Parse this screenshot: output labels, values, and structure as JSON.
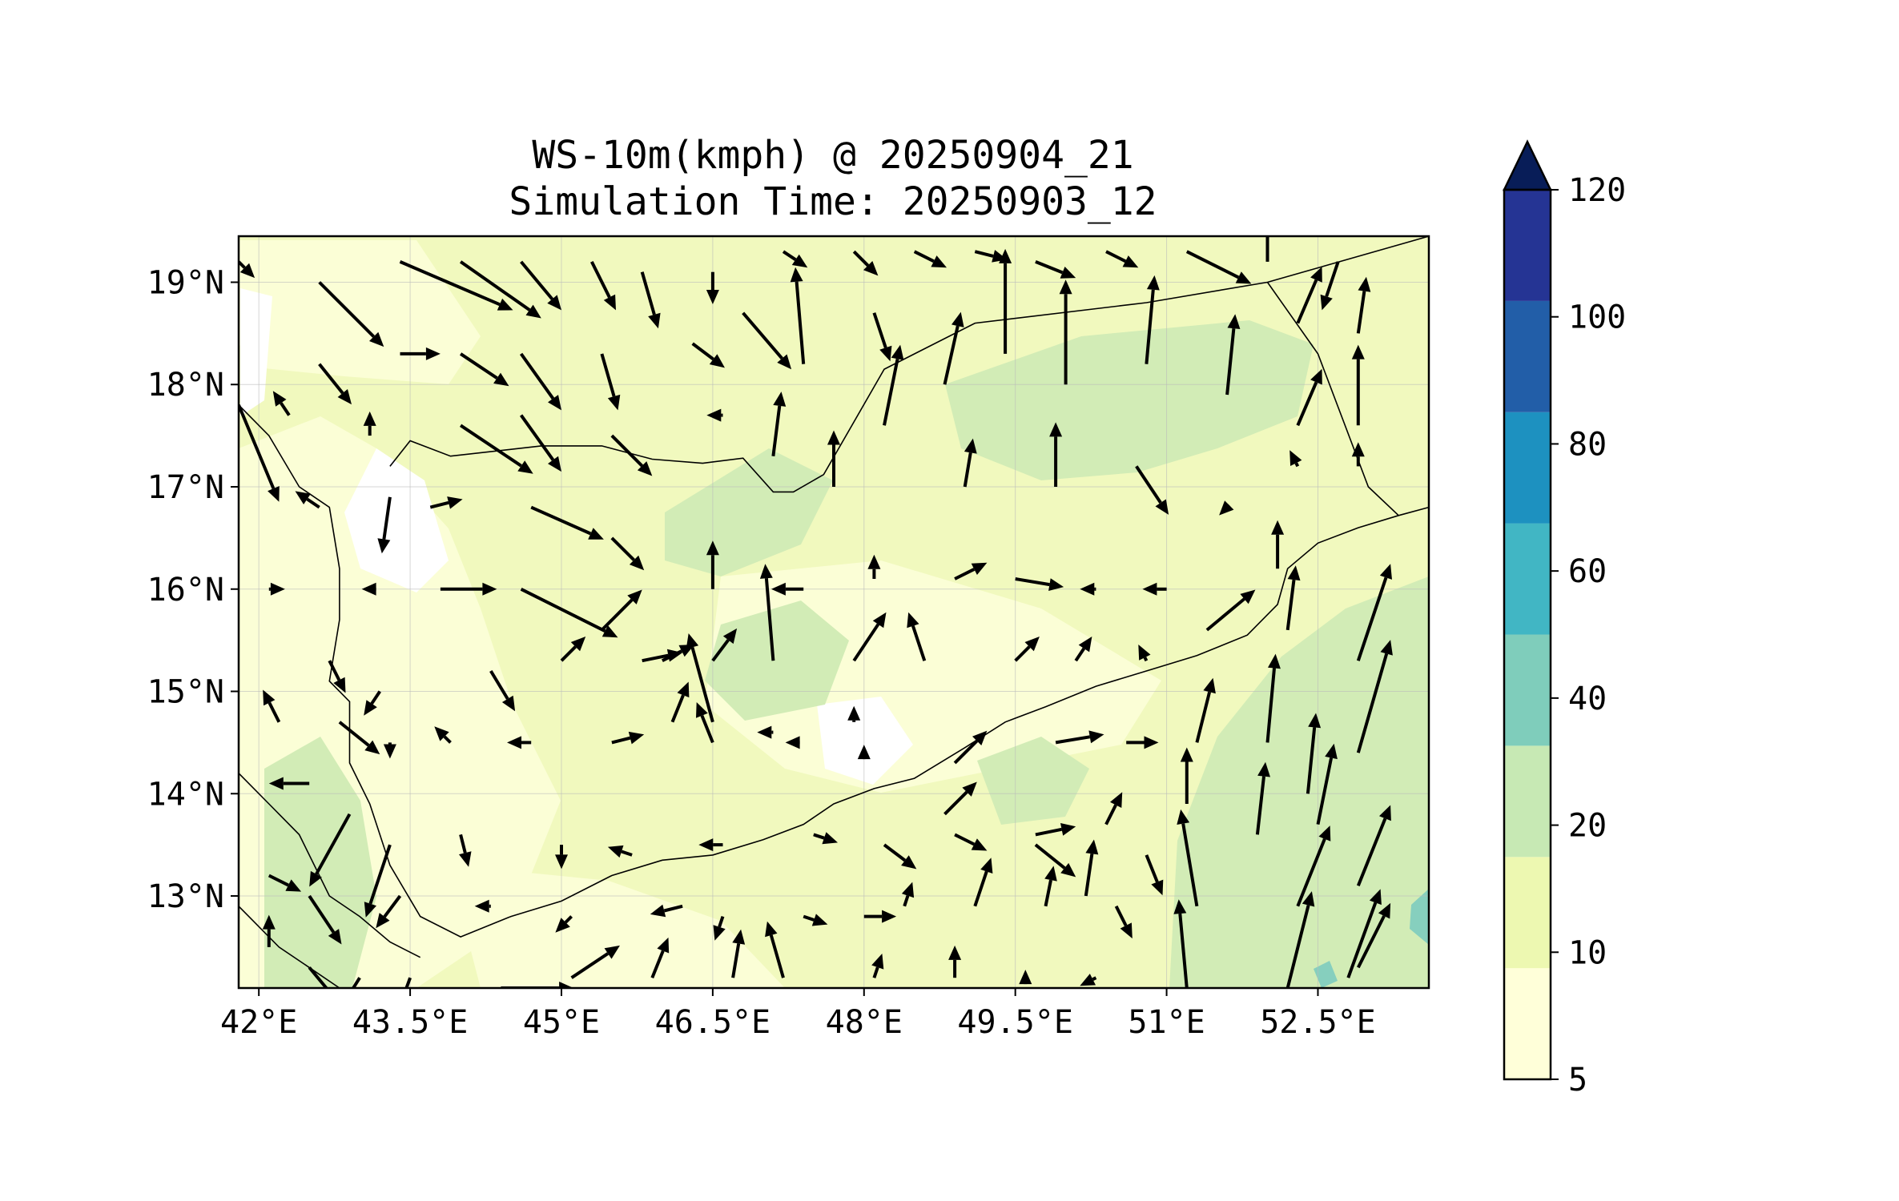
{
  "title": {
    "line1": "WS-10m(kmph) @ 20250904_21",
    "line2": "Simulation Time: 20250903_12"
  },
  "map": {
    "lon_range": [
      41.8,
      53.6
    ],
    "lat_range": [
      12.1,
      19.45
    ],
    "lon_ticks": [
      {
        "value": 42.0,
        "label": "42°E"
      },
      {
        "value": 43.5,
        "label": "43.5°E"
      },
      {
        "value": 45.0,
        "label": "45°E"
      },
      {
        "value": 46.5,
        "label": "46.5°E"
      },
      {
        "value": 48.0,
        "label": "48°E"
      },
      {
        "value": 49.5,
        "label": "49.5°E"
      },
      {
        "value": 51.0,
        "label": "51°E"
      },
      {
        "value": 52.5,
        "label": "52.5°E"
      }
    ],
    "lat_ticks": [
      {
        "value": 19,
        "label": "19°N"
      },
      {
        "value": 18,
        "label": "18°N"
      },
      {
        "value": 17,
        "label": "17°N"
      },
      {
        "value": 16,
        "label": "16°N"
      },
      {
        "value": 15,
        "label": "15°N"
      },
      {
        "value": 14,
        "label": "14°N"
      },
      {
        "value": 13,
        "label": "13°N"
      }
    ],
    "gridlines": true,
    "coastline": [
      [
        41.8,
        17.8
      ],
      [
        42.1,
        17.5
      ],
      [
        42.4,
        17.0
      ],
      [
        42.7,
        16.8
      ],
      [
        42.8,
        16.2
      ],
      [
        42.8,
        15.7
      ],
      [
        42.7,
        15.1
      ],
      [
        42.9,
        14.9
      ],
      [
        42.9,
        14.3
      ],
      [
        43.1,
        13.9
      ],
      [
        43.3,
        13.3
      ],
      [
        43.6,
        12.8
      ],
      [
        44.0,
        12.6
      ],
      [
        44.5,
        12.8
      ],
      [
        45.0,
        12.95
      ],
      [
        45.5,
        13.2
      ],
      [
        46.0,
        13.35
      ],
      [
        46.5,
        13.4
      ],
      [
        47.0,
        13.55
      ],
      [
        47.4,
        13.7
      ],
      [
        47.7,
        13.9
      ],
      [
        48.1,
        14.05
      ],
      [
        48.5,
        14.15
      ],
      [
        49.0,
        14.45
      ],
      [
        49.4,
        14.7
      ],
      [
        49.8,
        14.85
      ],
      [
        50.3,
        15.05
      ],
      [
        50.8,
        15.2
      ],
      [
        51.3,
        15.35
      ],
      [
        51.8,
        15.55
      ],
      [
        52.1,
        15.85
      ],
      [
        52.2,
        16.2
      ],
      [
        52.5,
        16.45
      ],
      [
        52.9,
        16.6
      ],
      [
        53.3,
        16.72
      ],
      [
        53.6,
        16.8
      ]
    ],
    "coastline_west": [
      [
        41.8,
        14.2
      ],
      [
        42.1,
        13.9
      ],
      [
        42.4,
        13.6
      ],
      [
        42.7,
        13.0
      ],
      [
        43.0,
        12.8
      ],
      [
        43.3,
        12.55
      ],
      [
        43.6,
        12.4
      ]
    ],
    "coastline_sw": [
      [
        41.8,
        12.9
      ],
      [
        42.2,
        12.5
      ],
      [
        42.5,
        12.3
      ],
      [
        42.8,
        12.1
      ]
    ],
    "borders": [
      [
        [
          43.3,
          17.2
        ],
        [
          43.5,
          17.45
        ],
        [
          43.9,
          17.3
        ],
        [
          44.8,
          17.4
        ],
        [
          45.4,
          17.4
        ],
        [
          45.9,
          17.27
        ],
        [
          46.4,
          17.23
        ],
        [
          46.8,
          17.28
        ],
        [
          47.1,
          16.95
        ],
        [
          47.3,
          16.95
        ],
        [
          47.6,
          17.12
        ],
        [
          48.2,
          18.15
        ],
        [
          49.1,
          18.6
        ],
        [
          50.8,
          18.8
        ],
        [
          52.0,
          19.0
        ],
        [
          53.6,
          19.45
        ]
      ],
      [
        [
          52.0,
          19.0
        ],
        [
          52.5,
          18.3
        ],
        [
          53.0,
          17.0
        ],
        [
          53.3,
          16.72
        ]
      ]
    ]
  },
  "wind_vectors": {
    "scale_kmph_per_degree": 0.025,
    "arrows": [
      [
        41.8,
        19.2,
        2,
        -2
      ],
      [
        42.6,
        19.0,
        8,
        -8
      ],
      [
        43.4,
        19.2,
        14,
        -6
      ],
      [
        44.0,
        19.2,
        10,
        -7
      ],
      [
        44.6,
        19.2,
        5,
        -6
      ],
      [
        45.3,
        19.2,
        3,
        -6
      ],
      [
        45.8,
        19.1,
        2,
        -7
      ],
      [
        46.5,
        19.1,
        0,
        -4
      ],
      [
        47.2,
        19.3,
        3,
        -2
      ],
      [
        47.9,
        19.3,
        3,
        -3
      ],
      [
        48.5,
        19.3,
        4,
        -2
      ],
      [
        49.1,
        19.3,
        4,
        -1
      ],
      [
        49.7,
        19.2,
        5,
        -2
      ],
      [
        50.4,
        19.3,
        4,
        -2
      ],
      [
        51.2,
        19.3,
        8,
        -4
      ],
      [
        52.0,
        19.2,
        0,
        6
      ],
      [
        52.7,
        19.2,
        -2,
        -6
      ],
      [
        42.6,
        18.2,
        4,
        -5
      ],
      [
        43.4,
        18.3,
        5,
        0
      ],
      [
        44.0,
        18.3,
        6,
        -4
      ],
      [
        44.6,
        18.3,
        5,
        -7
      ],
      [
        45.4,
        18.3,
        2,
        -7
      ],
      [
        46.3,
        18.4,
        4,
        -3
      ],
      [
        46.8,
        18.7,
        6,
        -7
      ],
      [
        47.4,
        18.2,
        -1,
        12
      ],
      [
        48.1,
        18.7,
        2,
        -6
      ],
      [
        48.8,
        18.0,
        2,
        9
      ],
      [
        49.4,
        18.3,
        0,
        13
      ],
      [
        50.0,
        18.0,
        0,
        13
      ],
      [
        50.8,
        18.2,
        1,
        11
      ],
      [
        51.6,
        17.9,
        1,
        10
      ],
      [
        52.3,
        18.6,
        3,
        7
      ],
      [
        52.9,
        18.5,
        1,
        7
      ],
      [
        42.3,
        17.7,
        -2,
        3
      ],
      [
        43.1,
        17.5,
        0,
        3
      ],
      [
        44.0,
        17.6,
        9,
        -6
      ],
      [
        44.6,
        17.7,
        5,
        -7
      ],
      [
        45.5,
        17.5,
        5,
        -5
      ],
      [
        46.6,
        17.7,
        -2,
        0
      ],
      [
        47.1,
        17.3,
        1,
        8
      ],
      [
        47.7,
        17.0,
        0,
        7
      ],
      [
        48.2,
        17.6,
        2,
        10
      ],
      [
        49.0,
        17.0,
        1,
        6
      ],
      [
        49.9,
        17.0,
        0,
        8
      ],
      [
        50.7,
        17.2,
        4,
        -6
      ],
      [
        51.6,
        16.8,
        -1,
        -1
      ],
      [
        52.3,
        17.6,
        3,
        7
      ],
      [
        52.9,
        17.6,
        0,
        10
      ],
      [
        41.8,
        17.8,
        5,
        -12
      ],
      [
        42.6,
        16.8,
        -3,
        2
      ],
      [
        43.3,
        16.9,
        -1,
        -7
      ],
      [
        43.7,
        16.8,
        4,
        1
      ],
      [
        44.7,
        16.8,
        9,
        -4
      ],
      [
        45.5,
        16.5,
        4,
        -4
      ],
      [
        46.5,
        16.0,
        0,
        6
      ],
      [
        47.4,
        16.0,
        -4,
        0
      ],
      [
        48.1,
        16.1,
        0,
        3
      ],
      [
        48.9,
        16.1,
        4,
        2
      ],
      [
        49.5,
        16.1,
        6,
        -1
      ],
      [
        50.3,
        16.0,
        -2,
        0
      ],
      [
        51.0,
        16.0,
        -3,
        0
      ],
      [
        52.1,
        16.2,
        0,
        6
      ],
      [
        52.3,
        17.2,
        -1,
        2
      ],
      [
        52.9,
        17.2,
        0,
        3
      ],
      [
        42.1,
        16.0,
        2,
        0
      ],
      [
        43.1,
        16.0,
        -1,
        0
      ],
      [
        43.8,
        16.0,
        7,
        0
      ],
      [
        44.6,
        16.0,
        12,
        -6
      ],
      [
        45.4,
        15.6,
        5,
        5
      ],
      [
        46.0,
        15.3,
        4,
        2
      ],
      [
        46.5,
        15.3,
        3,
        4
      ],
      [
        47.1,
        15.3,
        -1,
        12
      ],
      [
        47.9,
        15.3,
        4,
        6
      ],
      [
        48.6,
        15.3,
        -2,
        6
      ],
      [
        49.5,
        15.3,
        3,
        3
      ],
      [
        50.1,
        15.3,
        2,
        3
      ],
      [
        50.8,
        15.3,
        -1,
        2
      ],
      [
        51.4,
        15.6,
        6,
        5
      ],
      [
        52.2,
        15.6,
        1,
        8
      ],
      [
        52.9,
        15.3,
        4,
        12
      ],
      [
        42.7,
        15.3,
        2,
        -4
      ],
      [
        43.2,
        15.0,
        -2,
        -3
      ],
      [
        44.3,
        15.2,
        3,
        -5
      ],
      [
        45.0,
        15.3,
        3,
        3
      ],
      [
        45.8,
        15.3,
        5,
        1
      ],
      [
        46.1,
        14.7,
        2,
        5
      ],
      [
        46.5,
        14.7,
        -3,
        11
      ],
      [
        47.1,
        14.6,
        -2,
        0
      ],
      [
        47.9,
        14.7,
        0,
        2
      ],
      [
        48.9,
        14.3,
        4,
        4
      ],
      [
        49.9,
        14.5,
        6,
        1
      ],
      [
        50.6,
        14.5,
        4,
        0
      ],
      [
        51.3,
        14.5,
        2,
        8
      ],
      [
        52.0,
        14.5,
        1,
        11
      ],
      [
        52.4,
        14.0,
        1,
        10
      ],
      [
        52.9,
        14.4,
        4,
        14
      ],
      [
        42.2,
        14.7,
        -2,
        4
      ],
      [
        42.8,
        14.7,
        5,
        -4
      ],
      [
        43.3,
        14.5,
        0,
        -2
      ],
      [
        43.9,
        14.5,
        -2,
        2
      ],
      [
        44.7,
        14.5,
        -3,
        0
      ],
      [
        45.5,
        14.5,
        4,
        1
      ],
      [
        46.5,
        14.5,
        -2,
        5
      ],
      [
        47.3,
        14.5,
        -1,
        0
      ],
      [
        48.0,
        14.4,
        0,
        1
      ],
      [
        48.8,
        13.8,
        4,
        4
      ],
      [
        49.7,
        13.6,
        5,
        1
      ],
      [
        50.4,
        13.7,
        2,
        4
      ],
      [
        51.2,
        13.9,
        0,
        7
      ],
      [
        51.9,
        13.6,
        1,
        9
      ],
      [
        52.5,
        13.7,
        2,
        10
      ],
      [
        42.5,
        14.1,
        -5,
        0
      ],
      [
        42.9,
        13.8,
        -5,
        -9
      ],
      [
        43.3,
        13.5,
        -3,
        -9
      ],
      [
        44.0,
        13.6,
        1,
        -4
      ],
      [
        45.0,
        13.5,
        0,
        -3
      ],
      [
        45.7,
        13.4,
        -3,
        1
      ],
      [
        46.6,
        13.5,
        -3,
        0
      ],
      [
        47.5,
        13.6,
        3,
        -1
      ],
      [
        48.2,
        13.5,
        4,
        -3
      ],
      [
        48.9,
        13.6,
        4,
        -2
      ],
      [
        49.7,
        13.5,
        5,
        -4
      ],
      [
        50.2,
        13.0,
        1,
        7
      ],
      [
        50.8,
        13.4,
        2,
        -5
      ],
      [
        51.3,
        12.9,
        -2,
        12
      ],
      [
        52.3,
        12.9,
        4,
        10
      ],
      [
        52.9,
        13.1,
        4,
        10
      ],
      [
        42.1,
        13.2,
        4,
        -2
      ],
      [
        42.5,
        13.0,
        4,
        -6
      ],
      [
        43.4,
        13.0,
        -3,
        -4
      ],
      [
        44.3,
        12.9,
        -2,
        0
      ],
      [
        45.1,
        12.8,
        -2,
        -2
      ],
      [
        46.2,
        12.9,
        -4,
        -1
      ],
      [
        46.6,
        12.8,
        -1,
        -3
      ],
      [
        47.4,
        12.8,
        3,
        -1
      ],
      [
        48.0,
        12.8,
        4,
        0
      ],
      [
        48.4,
        12.9,
        1,
        3
      ],
      [
        49.1,
        12.9,
        2,
        6
      ],
      [
        49.8,
        12.9,
        1,
        5
      ],
      [
        50.5,
        12.9,
        2,
        -4
      ],
      [
        51.2,
        12.1,
        -1,
        11
      ],
      [
        52.2,
        12.1,
        3,
        12
      ],
      [
        52.8,
        12.2,
        4,
        11
      ],
      [
        42.1,
        12.5,
        0,
        4
      ],
      [
        42.5,
        12.3,
        5,
        -6
      ],
      [
        43.0,
        12.2,
        -5,
        -8
      ],
      [
        43.5,
        12.2,
        -4,
        -11
      ],
      [
        44.4,
        12.1,
        9,
        0
      ],
      [
        45.1,
        12.2,
        6,
        4
      ],
      [
        45.9,
        12.2,
        2,
        5
      ],
      [
        46.7,
        12.2,
        1,
        6
      ],
      [
        47.2,
        12.2,
        -2,
        7
      ],
      [
        48.1,
        12.2,
        1,
        3
      ],
      [
        48.9,
        12.2,
        0,
        4
      ],
      [
        49.6,
        12.2,
        0,
        1
      ],
      [
        50.3,
        12.2,
        -2,
        -1
      ],
      [
        52.9,
        12.3,
        4,
        8
      ]
    ]
  },
  "colorbar": {
    "label_values": [
      "5",
      "10",
      "20",
      "40",
      "60",
      "80",
      "100",
      "120"
    ],
    "colors": [
      "#ffffd9",
      "#edf8b1",
      "#c7e9b4",
      "#7fcdbb",
      "#41b6c4",
      "#1d91c0",
      "#225ea8",
      "#253494"
    ],
    "extend_color": "#081d58",
    "extend": "max"
  },
  "field_colors": {
    "base": "#f1f9be",
    "light": "#fbfed6",
    "green": "#d2ecb6",
    "teal": "#86cfbe"
  }
}
